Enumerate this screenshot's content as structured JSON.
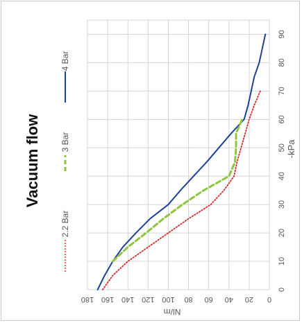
{
  "chart_data": {
    "type": "line",
    "orientation": "rotated-90-clockwise",
    "title": "Vacuum flow",
    "xlabel": "-kPa",
    "ylabel": "Nl/m",
    "xlim": [
      0,
      95
    ],
    "ylim": [
      0,
      180
    ],
    "x_ticks": [
      "0",
      "10",
      "20",
      "30",
      "40",
      "50",
      "60",
      "70",
      "80",
      "90"
    ],
    "y_ticks": [
      "0",
      "20",
      "40",
      "60",
      "80",
      "100",
      "120",
      "140",
      "160",
      "180"
    ],
    "grid": true,
    "legend_position": "top",
    "series": [
      {
        "name": "4 Bar",
        "color": "#1f3f99",
        "dash": "solid",
        "points": [
          [
            0,
            170
          ],
          [
            5,
            163
          ],
          [
            10,
            155
          ],
          [
            15,
            145
          ],
          [
            20,
            132
          ],
          [
            25,
            118
          ],
          [
            30,
            100
          ],
          [
            35,
            88
          ],
          [
            40,
            75
          ],
          [
            45,
            62
          ],
          [
            50,
            50
          ],
          [
            55,
            38
          ],
          [
            60,
            25
          ],
          [
            65,
            21
          ],
          [
            70,
            18
          ],
          [
            75,
            15
          ],
          [
            80,
            10
          ],
          [
            85,
            7
          ],
          [
            90,
            4
          ]
        ]
      },
      {
        "name": "3 Bar",
        "color": "#8cc63f",
        "dash": "dashed",
        "points": [
          [
            10,
            155
          ],
          [
            15,
            140
          ],
          [
            20,
            122
          ],
          [
            25,
            105
          ],
          [
            30,
            86
          ],
          [
            35,
            65
          ],
          [
            40,
            40
          ],
          [
            45,
            34
          ],
          [
            50,
            33
          ],
          [
            55,
            33
          ],
          [
            60,
            27
          ]
        ]
      },
      {
        "name": "2.2 Bar",
        "color": "#d62728",
        "dash": "dotted",
        "points": [
          [
            0,
            165
          ],
          [
            5,
            155
          ],
          [
            10,
            140
          ],
          [
            15,
            120
          ],
          [
            20,
            100
          ],
          [
            25,
            80
          ],
          [
            30,
            58
          ],
          [
            35,
            45
          ],
          [
            40,
            35
          ],
          [
            45,
            32
          ],
          [
            50,
            28
          ],
          [
            55,
            24
          ],
          [
            60,
            20
          ],
          [
            65,
            15
          ],
          [
            70,
            9
          ]
        ]
      }
    ]
  }
}
